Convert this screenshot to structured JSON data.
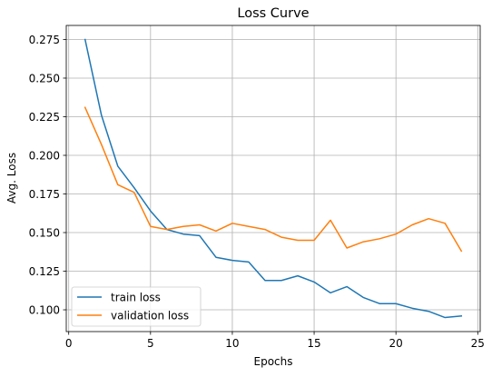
{
  "chart_data": {
    "type": "line",
    "title": "Loss Curve",
    "xlabel": "Epochs",
    "ylabel": "Avg. Loss",
    "xlim": [
      -0.15,
      25.15
    ],
    "ylim": [
      0.0859,
      0.2841
    ],
    "xticks": [
      0,
      5,
      10,
      15,
      20,
      25
    ],
    "xtick_labels": [
      "0",
      "5",
      "10",
      "15",
      "20",
      "25"
    ],
    "yticks": [
      0.1,
      0.125,
      0.15,
      0.175,
      0.2,
      0.225,
      0.25,
      0.275
    ],
    "ytick_labels": [
      "0.100",
      "0.125",
      "0.150",
      "0.175",
      "0.200",
      "0.225",
      "0.250",
      "0.275"
    ],
    "grid": true,
    "legend_position": "lower-left",
    "x": [
      1,
      2,
      3,
      4,
      5,
      6,
      7,
      8,
      9,
      10,
      11,
      12,
      13,
      14,
      15,
      16,
      17,
      18,
      19,
      20,
      21,
      22,
      23,
      24
    ],
    "series": [
      {
        "name": "train loss",
        "color": "#1f77b4",
        "values": [
          0.275,
          0.226,
          0.193,
          0.179,
          0.164,
          0.152,
          0.149,
          0.148,
          0.134,
          0.132,
          0.131,
          0.119,
          0.119,
          0.122,
          0.118,
          0.111,
          0.115,
          0.108,
          0.104,
          0.104,
          0.101,
          0.099,
          0.095,
          0.096
        ]
      },
      {
        "name": "validation loss",
        "color": "#ff7f0e",
        "values": [
          0.231,
          0.207,
          0.181,
          0.176,
          0.154,
          0.152,
          0.154,
          0.155,
          0.151,
          0.156,
          0.154,
          0.152,
          0.147,
          0.145,
          0.145,
          0.158,
          0.14,
          0.144,
          0.146,
          0.149,
          0.155,
          0.159,
          0.156,
          0.138
        ]
      }
    ]
  }
}
